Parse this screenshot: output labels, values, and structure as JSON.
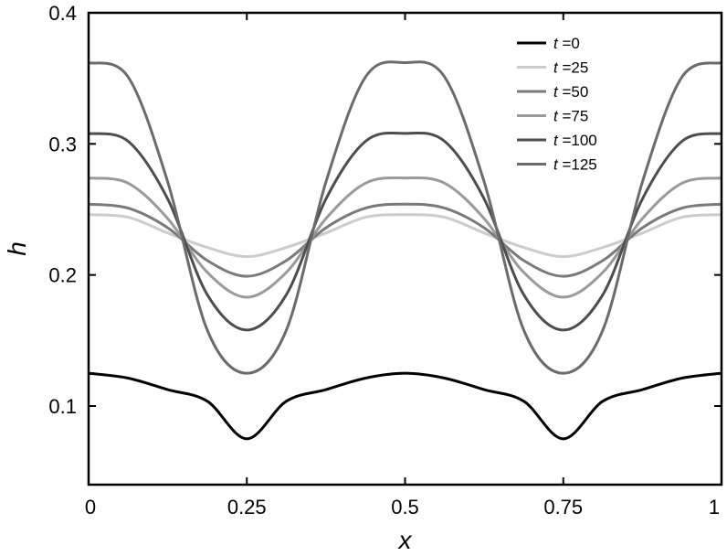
{
  "chart_data": {
    "type": "line",
    "title": "",
    "xlabel": "x",
    "ylabel": "h",
    "xlim": [
      0,
      1
    ],
    "ylim": [
      0.04,
      0.4
    ],
    "xticks": [
      0,
      0.25,
      0.5,
      0.75,
      1
    ],
    "xtick_labels": [
      "0",
      "0.25",
      "0.5",
      "0.75",
      "1"
    ],
    "yticks": [
      0.1,
      0.2,
      0.3,
      0.4
    ],
    "ytick_labels": [
      "0.1",
      "0.2",
      "0.3",
      "0.4"
    ],
    "grid": false,
    "legend_position": "top-right",
    "legend_prefix": "t",
    "series": [
      {
        "name": "=0",
        "color": "#000000",
        "points": [
          [
            0,
            0.125
          ],
          [
            0.0625,
            0.1213
          ],
          [
            0.125,
            0.1125
          ],
          [
            0.1875,
            0.1037
          ],
          [
            0.25,
            0.075
          ],
          [
            0.3125,
            0.1037
          ],
          [
            0.375,
            0.1125
          ],
          [
            0.4375,
            0.1213
          ],
          [
            0.5,
            0.125
          ],
          [
            0.5625,
            0.1213
          ],
          [
            0.625,
            0.1125
          ],
          [
            0.6875,
            0.1037
          ],
          [
            0.75,
            0.075
          ],
          [
            0.8125,
            0.1037
          ],
          [
            0.875,
            0.1125
          ],
          [
            0.9375,
            0.1213
          ],
          [
            1,
            0.125
          ]
        ]
      },
      {
        "name": "=25",
        "color": "#cccccc",
        "points": [
          [
            0,
            0.246
          ],
          [
            0.0625,
            0.244
          ],
          [
            0.125,
            0.232
          ],
          [
            0.1875,
            0.221
          ],
          [
            0.25,
            0.214
          ],
          [
            0.3125,
            0.221
          ],
          [
            0.375,
            0.232
          ],
          [
            0.4375,
            0.244
          ],
          [
            0.5,
            0.246
          ],
          [
            0.5625,
            0.244
          ],
          [
            0.625,
            0.232
          ],
          [
            0.6875,
            0.221
          ],
          [
            0.75,
            0.214
          ],
          [
            0.8125,
            0.221
          ],
          [
            0.875,
            0.232
          ],
          [
            0.9375,
            0.244
          ],
          [
            1,
            0.246
          ]
        ]
      },
      {
        "name": "=50",
        "color": "#7a7a7a",
        "points": [
          [
            0,
            0.254
          ],
          [
            0.0625,
            0.251
          ],
          [
            0.125,
            0.236
          ],
          [
            0.1875,
            0.211
          ],
          [
            0.25,
            0.199
          ],
          [
            0.3125,
            0.211
          ],
          [
            0.375,
            0.236
          ],
          [
            0.4375,
            0.251
          ],
          [
            0.5,
            0.254
          ],
          [
            0.5625,
            0.251
          ],
          [
            0.625,
            0.236
          ],
          [
            0.6875,
            0.211
          ],
          [
            0.75,
            0.199
          ],
          [
            0.8125,
            0.211
          ],
          [
            0.875,
            0.236
          ],
          [
            0.9375,
            0.251
          ],
          [
            1,
            0.254
          ]
        ]
      },
      {
        "name": "=75",
        "color": "#9a9a9a",
        "points": [
          [
            0,
            0.274
          ],
          [
            0.0625,
            0.27
          ],
          [
            0.125,
            0.243
          ],
          [
            0.1875,
            0.202
          ],
          [
            0.25,
            0.183
          ],
          [
            0.3125,
            0.202
          ],
          [
            0.375,
            0.243
          ],
          [
            0.4375,
            0.27
          ],
          [
            0.5,
            0.274
          ],
          [
            0.5625,
            0.27
          ],
          [
            0.625,
            0.243
          ],
          [
            0.6875,
            0.202
          ],
          [
            0.75,
            0.183
          ],
          [
            0.8125,
            0.202
          ],
          [
            0.875,
            0.243
          ],
          [
            0.9375,
            0.27
          ],
          [
            1,
            0.274
          ]
        ]
      },
      {
        "name": "=100",
        "color": "#4d4d4d",
        "points": [
          [
            0,
            0.308
          ],
          [
            0.0625,
            0.302
          ],
          [
            0.125,
            0.258
          ],
          [
            0.1875,
            0.185
          ],
          [
            0.25,
            0.158
          ],
          [
            0.3125,
            0.185
          ],
          [
            0.375,
            0.258
          ],
          [
            0.4375,
            0.302
          ],
          [
            0.5,
            0.308
          ],
          [
            0.5625,
            0.302
          ],
          [
            0.625,
            0.258
          ],
          [
            0.6875,
            0.185
          ],
          [
            0.75,
            0.158
          ],
          [
            0.8125,
            0.185
          ],
          [
            0.875,
            0.258
          ],
          [
            0.9375,
            0.302
          ],
          [
            1,
            0.308
          ]
        ]
      },
      {
        "name": "=125",
        "color": "#6b6b6b",
        "points": [
          [
            0,
            0.362
          ],
          [
            0.0625,
            0.351
          ],
          [
            0.125,
            0.271
          ],
          [
            0.1875,
            0.158
          ],
          [
            0.25,
            0.125
          ],
          [
            0.3125,
            0.158
          ],
          [
            0.375,
            0.271
          ],
          [
            0.4375,
            0.351
          ],
          [
            0.5,
            0.362
          ],
          [
            0.5625,
            0.351
          ],
          [
            0.625,
            0.271
          ],
          [
            0.6875,
            0.158
          ],
          [
            0.75,
            0.125
          ],
          [
            0.8125,
            0.158
          ],
          [
            0.875,
            0.271
          ],
          [
            0.9375,
            0.351
          ],
          [
            1,
            0.362
          ]
        ]
      }
    ]
  }
}
